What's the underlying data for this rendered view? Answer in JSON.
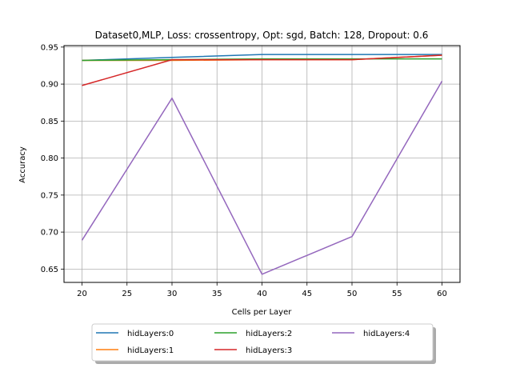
{
  "chart_data": {
    "type": "line",
    "title": "Dataset0,MLP, Loss: crossentropy, Opt: sgd, Batch: 128, Dropout: 0.6",
    "xlabel": "Cells per Layer",
    "ylabel": "Accuracy",
    "xlim": [
      18,
      62
    ],
    "ylim": [
      0.632,
      0.952
    ],
    "xticks": [
      20,
      25,
      30,
      35,
      40,
      45,
      50,
      55,
      60
    ],
    "yticks": [
      0.65,
      0.7,
      0.75,
      0.8,
      0.85,
      0.9,
      0.95
    ],
    "xtick_labels": [
      "20",
      "25",
      "30",
      "35",
      "40",
      "45",
      "50",
      "55",
      "60"
    ],
    "ytick_labels": [
      "0.65",
      "0.70",
      "0.75",
      "0.80",
      "0.85",
      "0.90",
      "0.95"
    ],
    "grid": true,
    "legend_position": "below plot, centered",
    "x": [
      20,
      30,
      40,
      50,
      60
    ],
    "series": [
      {
        "name": "hidLayers:0",
        "color": "#1f77b4",
        "values": [
          0.932,
          0.936,
          0.94,
          0.94,
          0.94
        ]
      },
      {
        "name": "hidLayers:1",
        "color": "#ff7f0e",
        "values": [
          0.932,
          0.932,
          0.933,
          0.933,
          0.939
        ]
      },
      {
        "name": "hidLayers:2",
        "color": "#2ca02c",
        "values": [
          0.932,
          0.933,
          0.934,
          0.934,
          0.934
        ]
      },
      {
        "name": "hidLayers:3",
        "color": "#d62728",
        "values": [
          0.898,
          0.933,
          0.933,
          0.933,
          0.939
        ]
      },
      {
        "name": "hidLayers:4",
        "color": "#9467bd",
        "values": [
          0.689,
          0.881,
          0.643,
          0.694,
          0.904
        ]
      }
    ]
  }
}
